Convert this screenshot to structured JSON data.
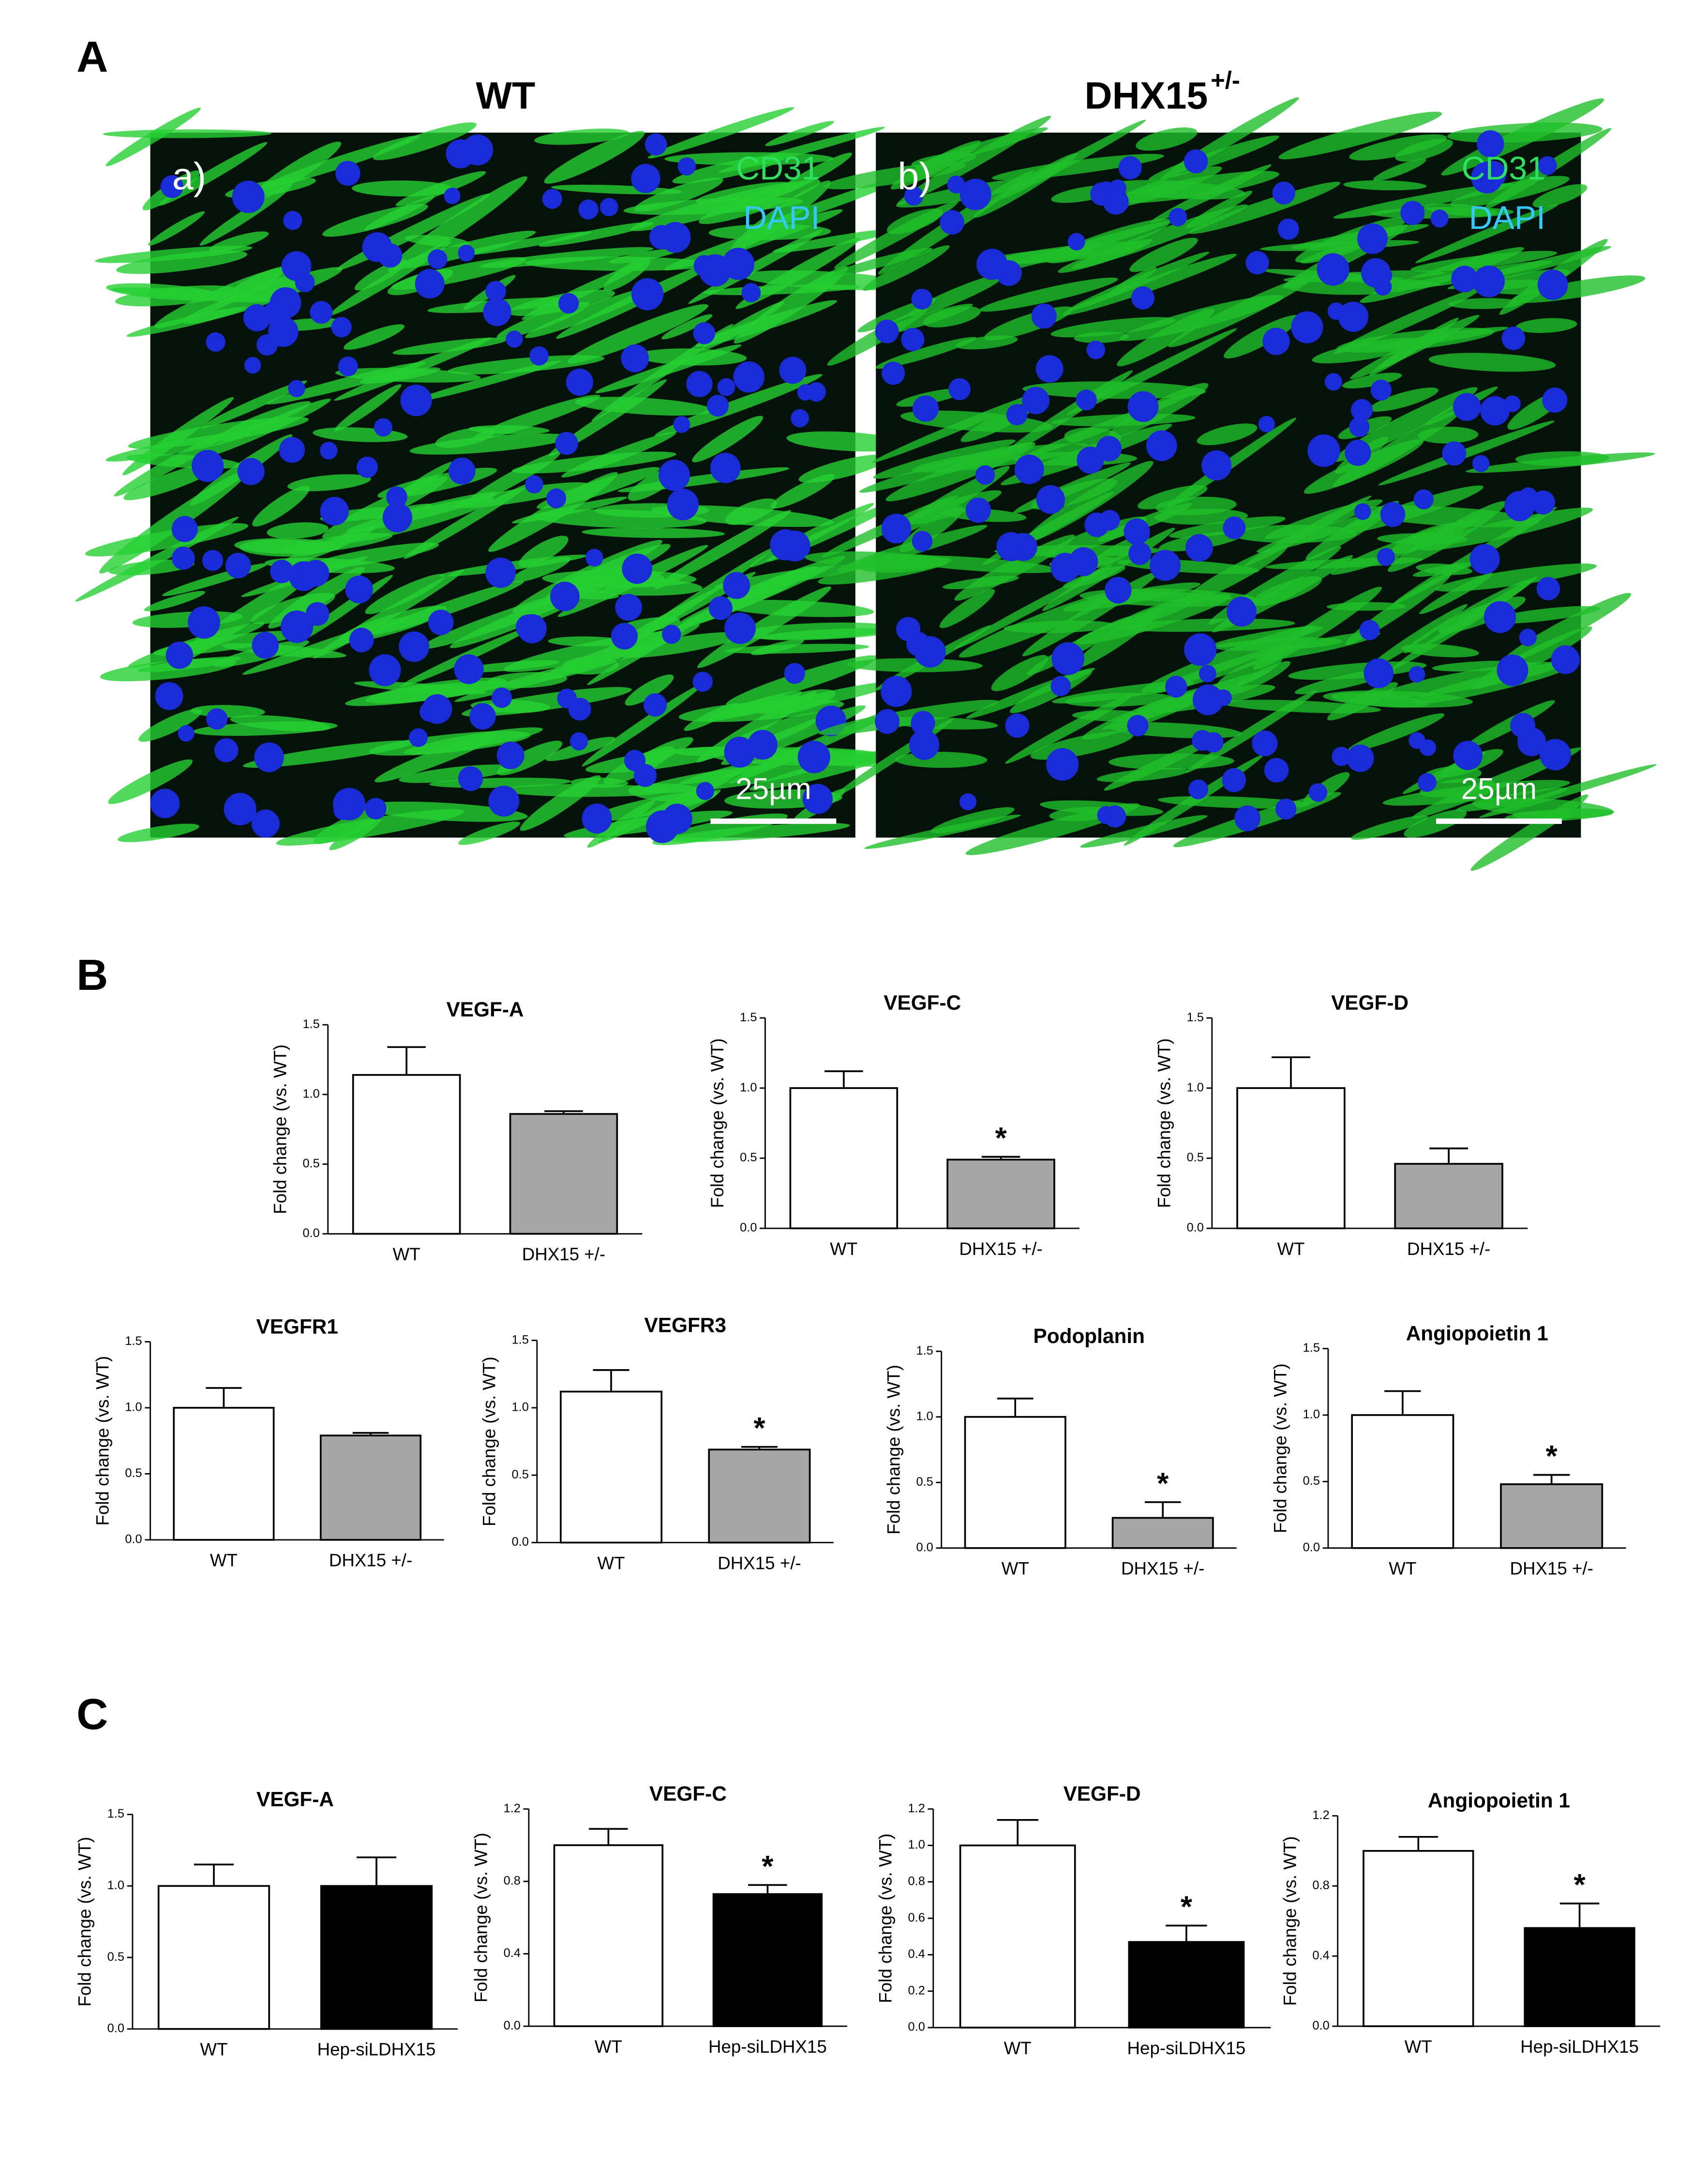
{
  "panel_labels": [
    "A",
    "B",
    "C"
  ],
  "images": [
    {
      "column_title": "WT",
      "label": "a)",
      "stains": [
        "CD31",
        "DAPI"
      ],
      "scale_bar": "25µm"
    },
    {
      "column_title": "DHX15",
      "column_title_sup": "+/-",
      "label": "b)",
      "stains": [
        "CD31",
        "DAPI"
      ],
      "scale_bar": "25µm"
    }
  ],
  "chart_data": [
    {
      "type": "bar",
      "title": "VEGF-A",
      "ylabel": "Fold change (vs. WT)",
      "categories": [
        "WT",
        "DHX15 +/-"
      ],
      "values": [
        1.14,
        0.86
      ],
      "errors": [
        0.2,
        0.02
      ],
      "significance": [
        null,
        null
      ],
      "colors": [
        "#ffffff",
        "#a6a6a6"
      ],
      "ylim": [
        0,
        1.5
      ],
      "yticks": [
        {
          "value": 0,
          "label": "0.0"
        },
        0.5,
        {
          "value": 1,
          "label": "1.0"
        },
        1.5
      ]
    },
    {
      "type": "bar",
      "title": "VEGF-C",
      "ylabel": "Fold change (vs. WT)",
      "categories": [
        "WT",
        "DHX15 +/-"
      ],
      "values": [
        1.0,
        0.49
      ],
      "errors": [
        0.12,
        0.02
      ],
      "significance": [
        null,
        "*"
      ],
      "colors": [
        "#ffffff",
        "#a6a6a6"
      ],
      "ylim": [
        0,
        1.5
      ],
      "yticks": [
        {
          "value": 0,
          "label": "0.0"
        },
        0.5,
        {
          "value": 1,
          "label": "1.0"
        },
        1.5
      ]
    },
    {
      "type": "bar",
      "title": "VEGF-D",
      "ylabel": "Fold change (vs. WT)",
      "categories": [
        "WT",
        "DHX15 +/-"
      ],
      "values": [
        1.0,
        0.46
      ],
      "errors": [
        0.22,
        0.11
      ],
      "significance": [
        null,
        null
      ],
      "colors": [
        "#ffffff",
        "#a6a6a6"
      ],
      "ylim": [
        0,
        1.5
      ],
      "yticks": [
        {
          "value": 0,
          "label": "0.0"
        },
        0.5,
        {
          "value": 1,
          "label": "1.0"
        },
        1.5
      ]
    },
    {
      "type": "bar",
      "title": "VEGFR1",
      "ylabel": "Fold change (vs. WT)",
      "categories": [
        "WT",
        "DHX15 +/-"
      ],
      "values": [
        1.0,
        0.79
      ],
      "errors": [
        0.15,
        0.02
      ],
      "significance": [
        null,
        null
      ],
      "colors": [
        "#ffffff",
        "#a6a6a6"
      ],
      "ylim": [
        0,
        1.5
      ],
      "yticks": [
        {
          "value": 0,
          "label": "0.0"
        },
        0.5,
        {
          "value": 1,
          "label": "1.0"
        },
        1.5
      ]
    },
    {
      "type": "bar",
      "title": "VEGFR3",
      "ylabel": "Fold change (vs. WT)",
      "categories": [
        "WT",
        "DHX15 +/-"
      ],
      "values": [
        1.12,
        0.69
      ],
      "errors": [
        0.16,
        0.02
      ],
      "significance": [
        null,
        "*"
      ],
      "colors": [
        "#ffffff",
        "#a6a6a6"
      ],
      "ylim": [
        0,
        1.5
      ],
      "yticks": [
        {
          "value": 0,
          "label": "0.0"
        },
        0.5,
        {
          "value": 1,
          "label": "1.0"
        },
        1.5
      ]
    },
    {
      "type": "bar",
      "title": "Podoplanin",
      "ylabel": "Fold change (vs. WT)",
      "categories": [
        "WT",
        "DHX15 +/-"
      ],
      "values": [
        1.0,
        0.23
      ],
      "errors": [
        0.14,
        0.12
      ],
      "significance": [
        null,
        "*"
      ],
      "colors": [
        "#ffffff",
        "#a6a6a6"
      ],
      "ylim": [
        0,
        1.5
      ],
      "yticks": [
        {
          "value": 0,
          "label": "0.0"
        },
        0.5,
        {
          "value": 1,
          "label": "1.0"
        },
        1.5
      ]
    },
    {
      "type": "bar",
      "title": "Angiopoietin 1",
      "ylabel": "Fold change (vs. WT)",
      "categories": [
        "WT",
        "DHX15 +/-"
      ],
      "values": [
        1.0,
        0.48
      ],
      "errors": [
        0.18,
        0.07
      ],
      "significance": [
        null,
        "*"
      ],
      "colors": [
        "#ffffff",
        "#a6a6a6"
      ],
      "ylim": [
        0,
        1.5
      ],
      "yticks": [
        {
          "value": 0,
          "label": "0.0"
        },
        0.5,
        {
          "value": 1,
          "label": "1.0"
        },
        1.5
      ]
    },
    {
      "type": "bar",
      "title": "VEGF-A",
      "ylabel": "Fold change (vs. WT)",
      "categories": [
        "WT",
        "Hep-siLDHX15"
      ],
      "values": [
        1.0,
        1.0
      ],
      "errors": [
        0.15,
        0.2
      ],
      "significance": [
        null,
        null
      ],
      "colors": [
        "#ffffff",
        "#000000"
      ],
      "ylim": [
        0,
        1.5
      ],
      "yticks": [
        {
          "value": 0,
          "label": "0.0"
        },
        0.5,
        {
          "value": 1,
          "label": "1.0"
        },
        1.5
      ]
    },
    {
      "type": "bar",
      "title": "VEGF-C",
      "ylabel": "Fold change (vs. WT)",
      "categories": [
        "WT",
        "Hep-siLDHX15"
      ],
      "values": [
        1.0,
        0.73
      ],
      "errors": [
        0.09,
        0.05
      ],
      "significance": [
        null,
        "*"
      ],
      "colors": [
        "#ffffff",
        "#000000"
      ],
      "ylim": [
        0,
        1.2
      ],
      "yticks": [
        {
          "value": 0,
          "label": "0.0"
        },
        0.4,
        0.8,
        1.2
      ]
    },
    {
      "type": "bar",
      "title": "VEGF-D",
      "ylabel": "Fold change (vs. WT)",
      "categories": [
        "WT",
        "Hep-siLDHX15"
      ],
      "values": [
        1.0,
        0.47
      ],
      "errors": [
        0.14,
        0.09
      ],
      "significance": [
        null,
        "*"
      ],
      "colors": [
        "#ffffff",
        "#000000"
      ],
      "ylim": [
        0,
        1.2
      ],
      "yticks": [
        {
          "value": 0,
          "label": "0.0"
        },
        0.2,
        0.4,
        0.6,
        0.8,
        {
          "value": 1,
          "label": "1.0"
        },
        1.2
      ]
    },
    {
      "type": "bar",
      "title": "Angiopoietin 1",
      "ylabel": "Fold change (vs. WT)",
      "categories": [
        "WT",
        "Hep-siLDHX15"
      ],
      "values": [
        1.0,
        0.56
      ],
      "errors": [
        0.08,
        0.14
      ],
      "significance": [
        null,
        "*"
      ],
      "colors": [
        "#ffffff",
        "#000000"
      ],
      "ylim": [
        0,
        1.2
      ],
      "yticks": [
        {
          "value": 0,
          "label": "0.0"
        },
        0.4,
        0.8,
        1.2
      ]
    }
  ]
}
